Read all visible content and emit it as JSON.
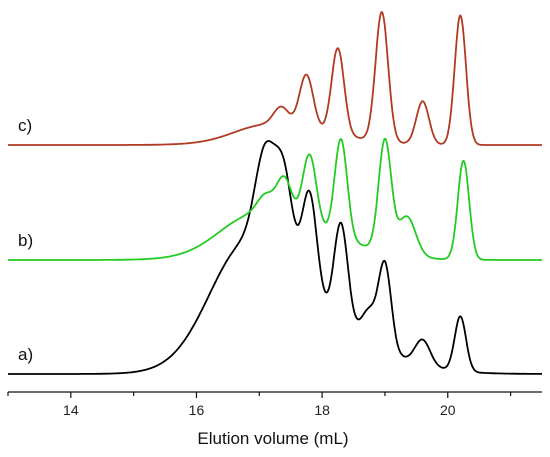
{
  "chart_data": {
    "type": "line",
    "xlabel": "Elution volume (mL)",
    "ylabel": "",
    "xlim": [
      13,
      21.5
    ],
    "xticks": [
      14,
      16,
      18,
      20
    ],
    "grid": false,
    "series": [
      {
        "name": "a)",
        "color": "#000000",
        "peaks": [
          {
            "x": 16.7,
            "h": 0.32,
            "w": 0.55
          },
          {
            "x": 17.1,
            "h": 0.38,
            "w": 0.16
          },
          {
            "x": 17.4,
            "h": 0.36,
            "w": 0.14
          },
          {
            "x": 17.8,
            "h": 0.42,
            "w": 0.12
          },
          {
            "x": 18.3,
            "h": 0.4,
            "w": 0.11
          },
          {
            "x": 18.75,
            "h": 0.12,
            "w": 0.12
          },
          {
            "x": 19.0,
            "h": 0.34,
            "w": 0.1
          },
          {
            "x": 19.6,
            "h": 0.1,
            "w": 0.12
          },
          {
            "x": 20.2,
            "h": 0.22,
            "w": 0.09
          }
        ],
        "envelope": {
          "x": 17.4,
          "h": 0.28,
          "w_left": 0.85,
          "w_right": 1.1
        }
      },
      {
        "name": "b)",
        "color": "#22cc22",
        "peaks": [
          {
            "x": 16.8,
            "h": 0.12,
            "w": 0.5
          },
          {
            "x": 17.1,
            "h": 0.1,
            "w": 0.13
          },
          {
            "x": 17.4,
            "h": 0.22,
            "w": 0.12
          },
          {
            "x": 17.8,
            "h": 0.4,
            "w": 0.11
          },
          {
            "x": 18.3,
            "h": 0.55,
            "w": 0.1
          },
          {
            "x": 19.0,
            "h": 0.62,
            "w": 0.1
          },
          {
            "x": 19.35,
            "h": 0.22,
            "w": 0.14
          },
          {
            "x": 20.25,
            "h": 0.55,
            "w": 0.09
          }
        ],
        "envelope": {
          "x": 17.5,
          "h": 0.18,
          "w_left": 0.85,
          "w_right": 0.9
        }
      },
      {
        "name": "c)",
        "color": "#b03a22",
        "peaks": [
          {
            "x": 17.0,
            "h": 0.05,
            "w": 0.45
          },
          {
            "x": 17.35,
            "h": 0.1,
            "w": 0.12
          },
          {
            "x": 17.75,
            "h": 0.3,
            "w": 0.11
          },
          {
            "x": 18.25,
            "h": 0.48,
            "w": 0.1
          },
          {
            "x": 18.95,
            "h": 0.72,
            "w": 0.1
          },
          {
            "x": 19.6,
            "h": 0.24,
            "w": 0.1
          },
          {
            "x": 20.2,
            "h": 0.72,
            "w": 0.09
          }
        ],
        "envelope": {
          "x": 17.6,
          "h": 0.08,
          "w_left": 0.8,
          "w_right": 0.8
        }
      }
    ]
  }
}
